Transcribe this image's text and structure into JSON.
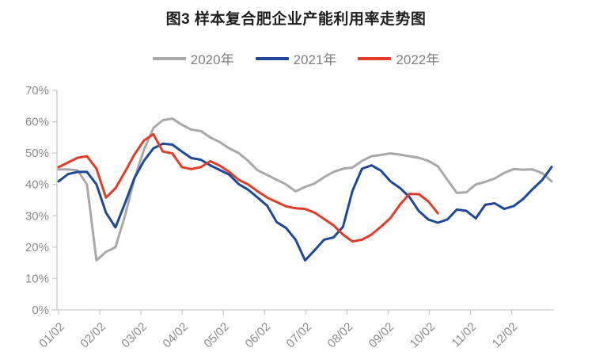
{
  "title": "图3 样本复合肥企业产能利用率走势图",
  "chart_data": {
    "type": "line",
    "title": "图3 样本复合肥企业产能利用率走势图",
    "xlabel": "",
    "ylabel": "",
    "y_unit": "%",
    "ylim": [
      0,
      70
    ],
    "y_tick_step": 10,
    "grid": false,
    "legend_position": "top-center",
    "x_tick_labels": [
      "01/02",
      "02/02",
      "03/02",
      "04/02",
      "05/02",
      "06/02",
      "07/02",
      "08/02",
      "09/02",
      "10/02",
      "11/02",
      "12/02"
    ],
    "y_tick_labels": [
      "0%",
      "10%",
      "20%",
      "30%",
      "40%",
      "50%",
      "60%",
      "70%"
    ],
    "x_description": "weekly observations across one year (month/day)",
    "series": [
      {
        "name": "2020年",
        "color": "#a8a8a8",
        "values": [
          44.8,
          44.8,
          44.5,
          40,
          15.8,
          18.5,
          20,
          30,
          41.8,
          51,
          58,
          60.5,
          61,
          59,
          57.5,
          57,
          55,
          53.5,
          51.5,
          50,
          47.5,
          44.5,
          43,
          41.5,
          40,
          37.8,
          39.2,
          40.3,
          42.3,
          44,
          45,
          45.4,
          47.5,
          49,
          49.4,
          49.9,
          49.5,
          49,
          48.5,
          47.5,
          45.8,
          41.5,
          37.3,
          37.5,
          40,
          40.8,
          41.9,
          43.7,
          44.9,
          44.7,
          44.8,
          43.6,
          41
        ]
      },
      {
        "name": "2021年",
        "color": "#1d4899",
        "values": [
          41,
          43.3,
          44,
          44,
          40,
          31,
          26.3,
          34,
          42,
          47.5,
          51.5,
          53,
          52.7,
          50.5,
          48.4,
          47.9,
          46.1,
          44.6,
          43.1,
          40.1,
          38.3,
          35.8,
          33.2,
          28,
          26.1,
          22.4,
          15.8,
          19,
          22.4,
          23.1,
          26.5,
          38,
          45,
          46.1,
          44.4,
          41,
          38.9,
          36,
          31.5,
          28.8,
          27.8,
          28.8,
          32,
          31.6,
          29.2,
          33.5,
          34,
          32.2,
          33.1,
          35.4,
          38.5,
          41.4,
          45.6
        ]
      },
      {
        "name": "2022年",
        "color": "#e23b28",
        "values": [
          45.5,
          47,
          48.5,
          49,
          45,
          35.8,
          38.8,
          44,
          49.5,
          54,
          56,
          50.5,
          49.9,
          45.5,
          44.9,
          45.5,
          47.4,
          46,
          44,
          41.5,
          40,
          37.8,
          35.8,
          34.4,
          33,
          32.4,
          32.2,
          31,
          29,
          27,
          24,
          21.8,
          22.4,
          24,
          26.5,
          29.3,
          33.5,
          37,
          36.9,
          34.6,
          30.8
        ]
      }
    ],
    "axis_color": "#c9c9c9",
    "tick_label_color": "#8a8a8a"
  }
}
